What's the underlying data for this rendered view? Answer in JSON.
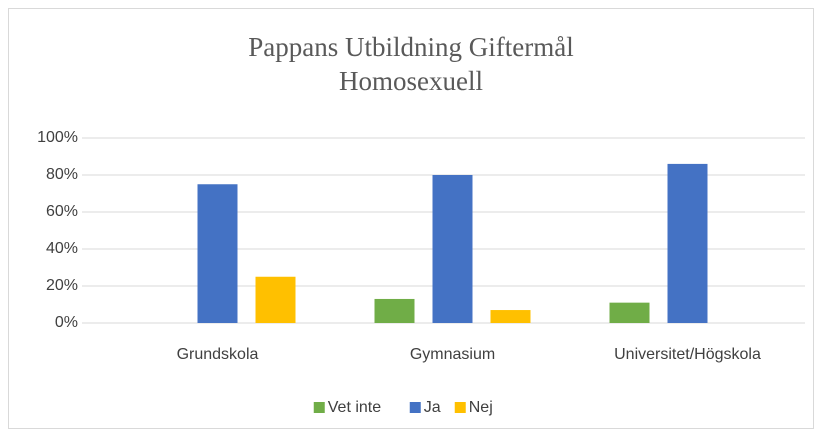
{
  "chart_data": {
    "type": "bar",
    "title": "Pappans Utbildning Giftermål Homosexuell",
    "categories": [
      "Grundskola",
      "Gymnasium",
      "Universitet/Högskola"
    ],
    "series": [
      {
        "name": "Vet inte",
        "color": "#70ad47",
        "values": [
          0,
          13,
          11
        ]
      },
      {
        "name": "Ja",
        "color": "#4472c4",
        "values": [
          75,
          80,
          86
        ]
      },
      {
        "name": "Nej",
        "color": "#ffc000",
        "values": [
          25,
          7,
          0
        ]
      }
    ],
    "ylim": [
      0,
      100
    ],
    "yticks": [
      {
        "value": 0,
        "label": "0%"
      },
      {
        "value": 20,
        "label": "20%"
      },
      {
        "value": 40,
        "label": "40%"
      },
      {
        "value": 60,
        "label": "60%"
      },
      {
        "value": 80,
        "label": "80%"
      },
      {
        "value": 100,
        "label": "100%"
      }
    ],
    "grid": true,
    "legend": "bottom"
  }
}
